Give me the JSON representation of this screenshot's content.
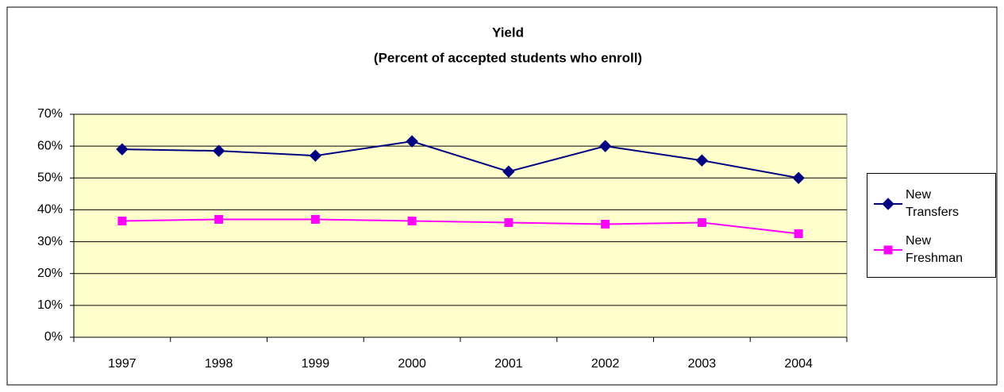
{
  "chart_data": {
    "type": "line",
    "title": "Yield",
    "subtitle": "(Percent of accepted students who enroll)",
    "categories": [
      "1997",
      "1998",
      "1999",
      "2000",
      "2001",
      "2002",
      "2003",
      "2004"
    ],
    "series": [
      {
        "name": "New Transfers",
        "color": "#000080",
        "marker": "diamond",
        "values": [
          59,
          58.5,
          57,
          61.5,
          52,
          60,
          55.5,
          50
        ]
      },
      {
        "name": "New Freshman",
        "color": "#FF00FF",
        "marker": "square",
        "values": [
          36.5,
          37,
          37,
          36.5,
          36,
          35.5,
          36,
          32.5
        ]
      }
    ],
    "ylim": [
      0,
      70
    ],
    "yticks": [
      {
        "value": 0,
        "label": "0%"
      },
      {
        "value": 10,
        "label": "10%"
      },
      {
        "value": 20,
        "label": "20%"
      },
      {
        "value": 30,
        "label": "30%"
      },
      {
        "value": 40,
        "label": "40%"
      },
      {
        "value": 50,
        "label": "50%"
      },
      {
        "value": 60,
        "label": "60%"
      },
      {
        "value": 70,
        "label": "70%"
      }
    ],
    "grid": true,
    "plot_background": "#FFFFCC",
    "legend": "right"
  }
}
